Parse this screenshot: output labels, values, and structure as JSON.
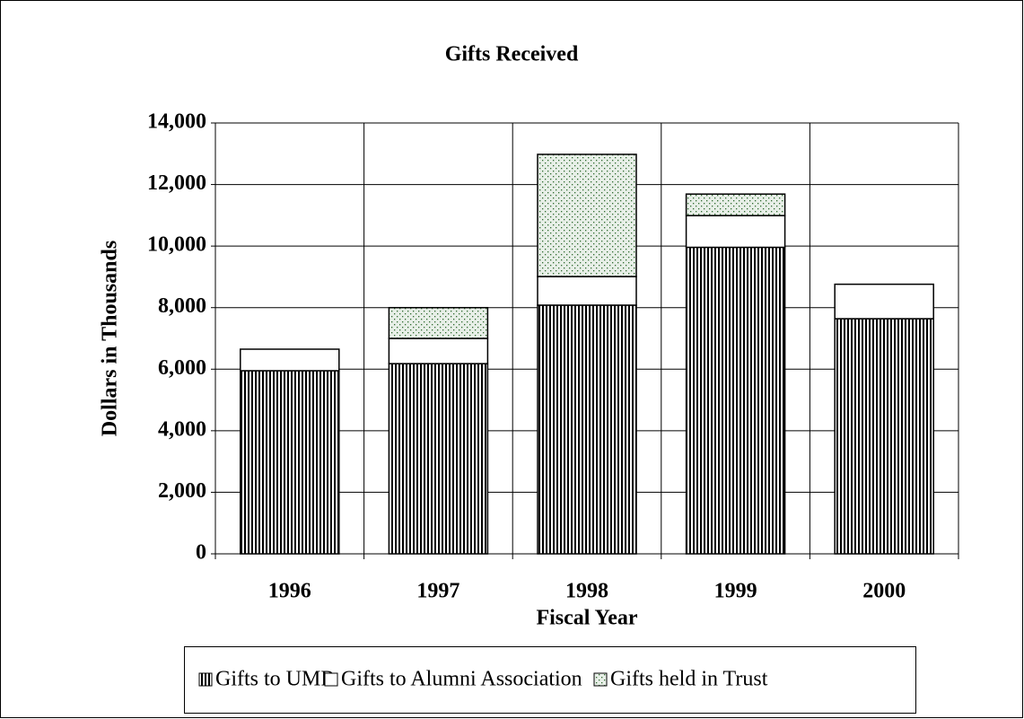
{
  "chart_data": {
    "type": "stacked-bar",
    "title": "Gifts Received",
    "x_label": "Fiscal Year",
    "y_label": "Dollars in Thousands",
    "categories": [
      "1996",
      "1997",
      "1998",
      "1999",
      "2000"
    ],
    "series": [
      {
        "name": "Gifts to UMR",
        "color": "#000000",
        "pattern": "vertical-lines",
        "values": [
          5950,
          6180,
          8080,
          9960,
          7640
        ]
      },
      {
        "name": "Gifts to Alumni Association",
        "color": "#ffffff",
        "pattern": "solid",
        "values": [
          700,
          820,
          930,
          1030,
          1120
        ]
      },
      {
        "name": "Gifts held in Trust",
        "color": "#2e6b2e",
        "pattern": "dots",
        "values": [
          0,
          1000,
          3970,
          700,
          0
        ]
      }
    ],
    "ylim": [
      0,
      14000
    ],
    "yticks": [
      0,
      {
        "value": 2000,
        "label": "2,000"
      },
      {
        "value": 4000,
        "label": "4,000"
      },
      {
        "value": 6000,
        "label": "6,000"
      },
      {
        "value": 8000,
        "label": "8,000"
      },
      {
        "value": 10000,
        "label": "10,000"
      },
      {
        "value": 12000,
        "label": "12,000"
      },
      {
        "value": 14000,
        "label": "14,000"
      }
    ],
    "grid": true,
    "legend": "bottom"
  }
}
